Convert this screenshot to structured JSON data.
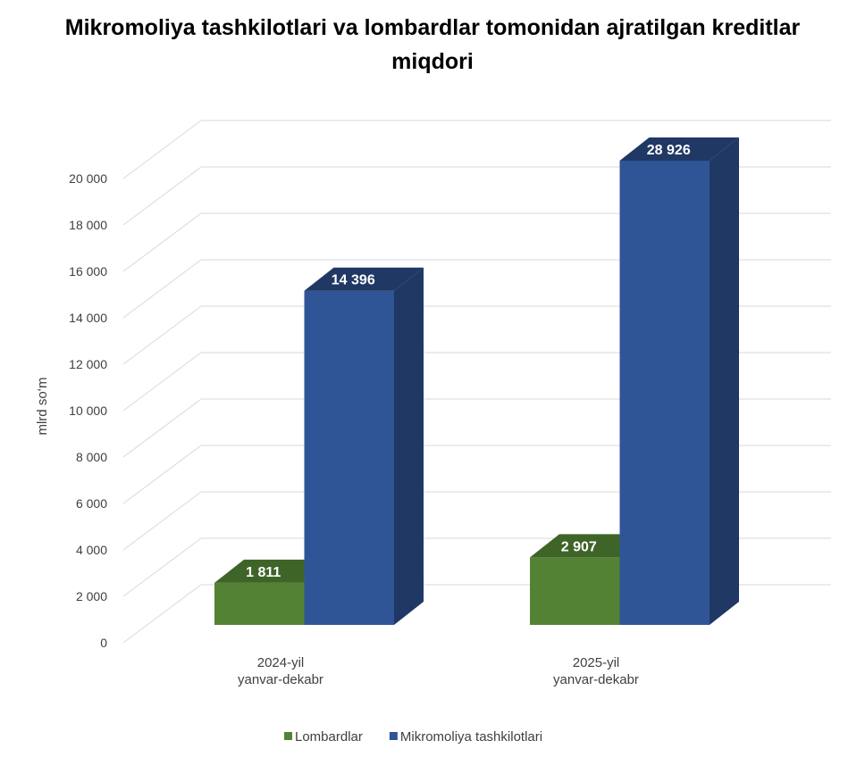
{
  "chart_data": {
    "type": "bar3d",
    "title": "Mikromoliya tashkilotlari va lombardlar tomonidan ajratilgan kreditlar miqdori",
    "y_label": "mlrd so‘m",
    "categories": [
      "2024-yil\nyanvar-dekabr",
      "2025-yil\nyanvar-dekabr"
    ],
    "series": [
      {
        "name": "Lombardlar",
        "color": "#548235",
        "values": [
          1811,
          2907
        ],
        "value_labels": [
          "1 811",
          "2 907"
        ]
      },
      {
        "name": "Mikromoliya tashkilotlari",
        "color": "#2f5597",
        "values": [
          14396,
          28926
        ],
        "value_labels": [
          "14 396",
          "28 926"
        ]
      }
    ],
    "ylim": [
      0,
      20000
    ],
    "yticks": [
      0,
      {
        "value": 2000,
        "label": "2 000"
      },
      {
        "value": 4000,
        "label": "4 000"
      },
      {
        "value": 6000,
        "label": "6 000"
      },
      {
        "value": 8000,
        "label": "8 000"
      },
      {
        "value": 10000,
        "label": "10 000"
      },
      {
        "value": 12000,
        "label": "12 000"
      },
      {
        "value": 14000,
        "label": "14 000"
      },
      {
        "value": 16000,
        "label": "16 000"
      },
      {
        "value": 18000,
        "label": "18 000"
      },
      {
        "value": 20000,
        "label": "20 000"
      }
    ],
    "grid": true,
    "legend": "bottom"
  }
}
